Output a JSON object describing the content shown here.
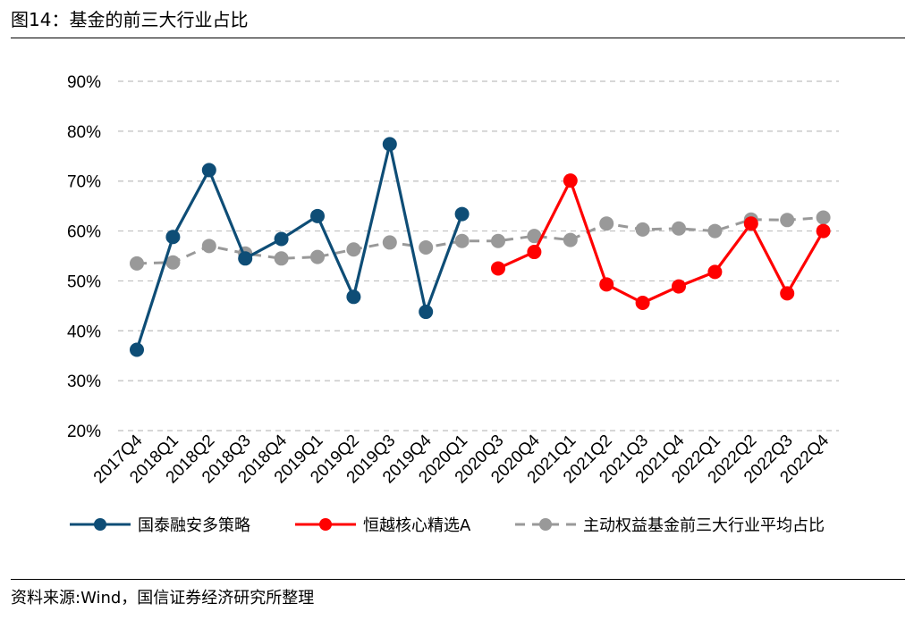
{
  "title": "图14：基金的前三大行业占比",
  "source": "资料来源:Wind，国信证券经济研究所整理",
  "chart_data": {
    "type": "line",
    "categories": [
      "2017Q4",
      "2018Q1",
      "2018Q2",
      "2018Q3",
      "2018Q4",
      "2019Q1",
      "2019Q2",
      "2019Q3",
      "2019Q4",
      "2020Q1",
      "2020Q3",
      "2020Q4",
      "2021Q1",
      "2021Q2",
      "2021Q3",
      "2021Q4",
      "2022Q1",
      "2022Q2",
      "2022Q3",
      "2022Q4"
    ],
    "y_ticks": [
      "20%",
      "30%",
      "40%",
      "50%",
      "60%",
      "70%",
      "80%",
      "90%"
    ],
    "ylim": [
      20,
      90
    ],
    "grid": true,
    "legend_position": "bottom",
    "series": [
      {
        "name": "国泰融安多策略",
        "color": "#0e4d76",
        "style": "solid",
        "values": [
          36.2,
          58.8,
          72.2,
          54.5,
          58.4,
          63.0,
          46.8,
          77.4,
          43.8,
          63.4,
          null,
          null,
          null,
          null,
          null,
          null,
          null,
          null,
          null,
          null
        ]
      },
      {
        "name": "恒越核心精选A",
        "color": "#ff0000",
        "style": "solid",
        "values": [
          null,
          null,
          null,
          null,
          null,
          null,
          null,
          null,
          null,
          null,
          52.5,
          55.8,
          70.1,
          49.3,
          45.6,
          48.9,
          51.8,
          61.5,
          47.5,
          60.0
        ]
      },
      {
        "name": "主动权益基金前三大行业平均占比",
        "color": "#999999",
        "style": "dashed",
        "values": [
          53.5,
          53.7,
          57.0,
          55.5,
          54.5,
          54.8,
          56.3,
          57.7,
          56.7,
          58.0,
          58.0,
          59.0,
          58.2,
          61.5,
          60.3,
          60.5,
          60.0,
          62.3,
          62.2,
          62.7
        ]
      }
    ]
  }
}
